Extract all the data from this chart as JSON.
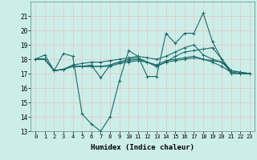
{
  "title": "",
  "xlabel": "Humidex (Indice chaleur)",
  "ylabel": "",
  "xlim": [
    -0.5,
    23.5
  ],
  "ylim": [
    13,
    22
  ],
  "yticks": [
    13,
    14,
    15,
    16,
    17,
    18,
    19,
    20,
    21
  ],
  "xticks": [
    0,
    1,
    2,
    3,
    4,
    5,
    6,
    7,
    8,
    9,
    10,
    11,
    12,
    13,
    14,
    15,
    16,
    17,
    18,
    19,
    20,
    21,
    22,
    23
  ],
  "bg_color": "#cceee8",
  "line_color": "#1a6b6b",
  "grid_color": "#e8c8c8",
  "series": [
    [
      18.0,
      18.3,
      17.2,
      18.4,
      18.2,
      14.2,
      13.5,
      13.0,
      14.0,
      16.5,
      18.6,
      18.2,
      16.8,
      16.8,
      19.8,
      19.1,
      19.8,
      19.8,
      21.2,
      19.2,
      18.0,
      17.0,
      17.0,
      17.0
    ],
    [
      18.0,
      18.0,
      17.2,
      17.3,
      17.5,
      17.5,
      17.6,
      16.7,
      17.6,
      17.8,
      18.0,
      18.1,
      17.8,
      17.5,
      17.8,
      18.2,
      18.5,
      18.6,
      18.7,
      18.8,
      18.0,
      17.2,
      17.1,
      17.0
    ],
    [
      18.0,
      18.0,
      17.2,
      17.3,
      17.6,
      17.7,
      17.8,
      17.8,
      17.9,
      18.0,
      18.1,
      18.2,
      18.1,
      18.0,
      18.2,
      18.5,
      18.8,
      19.0,
      18.3,
      18.0,
      17.8,
      17.2,
      17.1,
      17.0
    ],
    [
      18.0,
      18.0,
      17.2,
      17.3,
      17.5,
      17.5,
      17.5,
      17.5,
      17.6,
      17.8,
      17.9,
      18.0,
      17.8,
      17.6,
      17.9,
      18.0,
      18.1,
      18.2,
      18.0,
      17.9,
      17.8,
      17.1,
      17.0,
      17.0
    ],
    [
      18.0,
      18.0,
      17.2,
      17.3,
      17.5,
      17.5,
      17.5,
      17.5,
      17.5,
      17.7,
      17.8,
      17.9,
      17.8,
      17.5,
      17.8,
      17.9,
      18.0,
      18.1,
      18.0,
      17.8,
      17.5,
      17.1,
      17.0,
      17.0
    ]
  ],
  "marker": "+",
  "marker_size": 3,
  "linewidth": 0.8,
  "tick_fontsize": 5,
  "xlabel_fontsize": 6.5
}
